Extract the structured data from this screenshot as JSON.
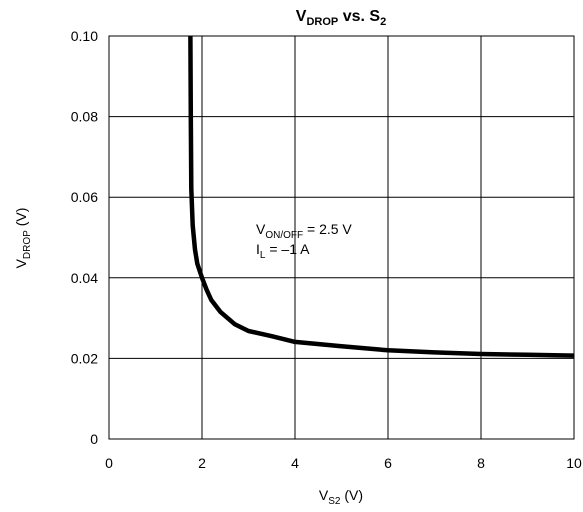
{
  "chart_data": {
    "type": "line",
    "title": {
      "main": "V",
      "sub": "DROP",
      "mid": " vs. S",
      "sub2": "2"
    },
    "xlabel": {
      "main": "V",
      "sub": "S2",
      "unit": " (V)"
    },
    "ylabel": {
      "main": "V",
      "sub": "DROP",
      "unit": "  (V)"
    },
    "xlim": [
      0,
      10
    ],
    "ylim": [
      0,
      0.1
    ],
    "xticks": [
      0,
      2,
      4,
      6,
      8,
      10
    ],
    "xtick_labels": [
      "0",
      "2",
      "4",
      "6",
      "8",
      "10"
    ],
    "yticks": [
      0,
      0.02,
      0.04,
      0.06,
      0.08,
      0.1
    ],
    "ytick_labels": [
      "0",
      "0.02",
      "0.04",
      "0.06",
      "0.08",
      "0.10"
    ],
    "grid": true,
    "series": [
      {
        "x": [
          1.75,
          1.76,
          1.77,
          1.8,
          1.85,
          1.9,
          2.0,
          2.1,
          2.2,
          2.4,
          2.7,
          3.0,
          3.5,
          4.0,
          5.0,
          6.0,
          7.0,
          8.0,
          9.0,
          10.0
        ],
        "y": [
          0.1,
          0.08,
          0.062,
          0.053,
          0.047,
          0.0435,
          0.04,
          0.037,
          0.0345,
          0.0315,
          0.0285,
          0.0268,
          0.0255,
          0.0241,
          0.023,
          0.022,
          0.0215,
          0.0211,
          0.0209,
          0.0207
        ]
      }
    ],
    "annotation": {
      "line1": {
        "main": "V",
        "sub": "ON/OFF",
        "rest": " = 2.5 V"
      },
      "line2": {
        "main": "I",
        "sub": "L",
        "rest": " = –1 A"
      }
    }
  }
}
